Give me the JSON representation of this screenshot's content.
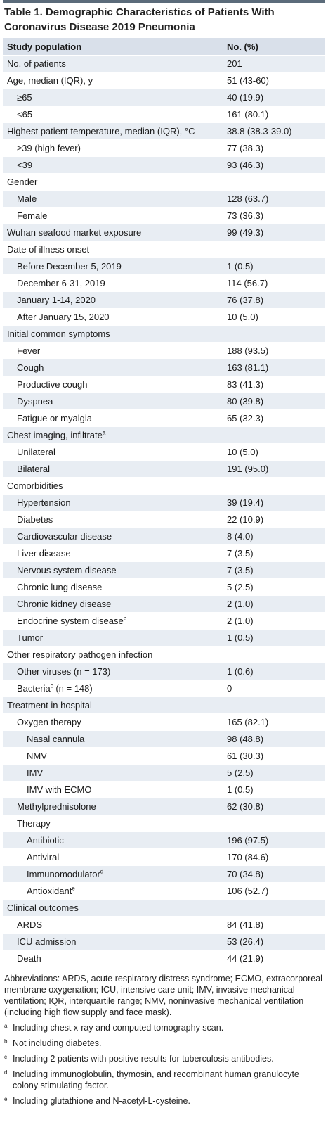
{
  "title": "Table 1. Demographic Characteristics of Patients With Coronavirus Disease 2019 Pneumonia",
  "header": {
    "col1": "Study population",
    "col2": "No. (%)"
  },
  "rows": [
    {
      "label": "No. of patients",
      "value": "201",
      "indent": 0,
      "shade": true
    },
    {
      "label": "Age, median (IQR), y",
      "value": "51 (43-60)",
      "indent": 0,
      "shade": false
    },
    {
      "label": "≥65",
      "value": "40 (19.9)",
      "indent": 1,
      "shade": true
    },
    {
      "label": "<65",
      "value": "161 (80.1)",
      "indent": 1,
      "shade": false
    },
    {
      "label": "Highest patient temperature, median (IQR), °C",
      "value": "38.8 (38.3-39.0)",
      "indent": 0,
      "shade": true
    },
    {
      "label": "≥39 (high fever)",
      "value": "77 (38.3)",
      "indent": 1,
      "shade": false
    },
    {
      "label": "<39",
      "value": "93 (46.3)",
      "indent": 1,
      "shade": true
    },
    {
      "label": "Gender",
      "value": "",
      "indent": 0,
      "shade": false
    },
    {
      "label": "Male",
      "value": "128 (63.7)",
      "indent": 1,
      "shade": true
    },
    {
      "label": "Female",
      "value": "73 (36.3)",
      "indent": 1,
      "shade": false
    },
    {
      "label": "Wuhan seafood market exposure",
      "value": "99 (49.3)",
      "indent": 0,
      "shade": true
    },
    {
      "label": "Date of illness onset",
      "value": "",
      "indent": 0,
      "shade": false
    },
    {
      "label": "Before December 5, 2019",
      "value": "1 (0.5)",
      "indent": 1,
      "shade": true
    },
    {
      "label": "December 6-31, 2019",
      "value": "114 (56.7)",
      "indent": 1,
      "shade": false
    },
    {
      "label": "January 1-14, 2020",
      "value": "76 (37.8)",
      "indent": 1,
      "shade": true
    },
    {
      "label": "After January 15, 2020",
      "value": "10 (5.0)",
      "indent": 1,
      "shade": false
    },
    {
      "label": "Initial common symptoms",
      "value": "",
      "indent": 0,
      "shade": true
    },
    {
      "label": "Fever",
      "value": "188 (93.5)",
      "indent": 1,
      "shade": false
    },
    {
      "label": "Cough",
      "value": "163 (81.1)",
      "indent": 1,
      "shade": true
    },
    {
      "label": "Productive cough",
      "value": "83 (41.3)",
      "indent": 1,
      "shade": false
    },
    {
      "label": "Dyspnea",
      "value": "80 (39.8)",
      "indent": 1,
      "shade": true
    },
    {
      "label": "Fatigue or myalgia",
      "value": "65 (32.3)",
      "indent": 1,
      "shade": false
    },
    {
      "label": "Chest imaging, infiltrate",
      "sup": "a",
      "value": "",
      "indent": 0,
      "shade": true
    },
    {
      "label": "Unilateral",
      "value": "10 (5.0)",
      "indent": 1,
      "shade": false
    },
    {
      "label": "Bilateral",
      "value": "191 (95.0)",
      "indent": 1,
      "shade": true
    },
    {
      "label": "Comorbidities",
      "value": "",
      "indent": 0,
      "shade": false
    },
    {
      "label": "Hypertension",
      "value": "39 (19.4)",
      "indent": 1,
      "shade": true
    },
    {
      "label": "Diabetes",
      "value": "22 (10.9)",
      "indent": 1,
      "shade": false
    },
    {
      "label": "Cardiovascular disease",
      "value": "8 (4.0)",
      "indent": 1,
      "shade": true
    },
    {
      "label": "Liver disease",
      "value": "7 (3.5)",
      "indent": 1,
      "shade": false
    },
    {
      "label": "Nervous system disease",
      "value": "7 (3.5)",
      "indent": 1,
      "shade": true
    },
    {
      "label": "Chronic lung disease",
      "value": "5 (2.5)",
      "indent": 1,
      "shade": false
    },
    {
      "label": "Chronic kidney disease",
      "value": "2 (1.0)",
      "indent": 1,
      "shade": true
    },
    {
      "label": "Endocrine system disease",
      "sup": "b",
      "value": "2 (1.0)",
      "indent": 1,
      "shade": false
    },
    {
      "label": "Tumor",
      "value": "1 (0.5)",
      "indent": 1,
      "shade": true
    },
    {
      "label": "Other respiratory pathogen infection",
      "value": "",
      "indent": 0,
      "shade": false
    },
    {
      "label": "Other viruses (n = 173)",
      "value": "1 (0.6)",
      "indent": 1,
      "shade": true
    },
    {
      "label": "Bacteria",
      "sup": "c",
      "suffix": " (n = 148)",
      "value": "0",
      "indent": 1,
      "shade": false
    },
    {
      "label": "Treatment in hospital",
      "value": "",
      "indent": 0,
      "shade": true
    },
    {
      "label": "Oxygen therapy",
      "value": "165 (82.1)",
      "indent": 1,
      "shade": false
    },
    {
      "label": "Nasal cannula",
      "value": "98 (48.8)",
      "indent": 2,
      "shade": true
    },
    {
      "label": "NMV",
      "value": "61 (30.3)",
      "indent": 2,
      "shade": false
    },
    {
      "label": "IMV",
      "value": "5 (2.5)",
      "indent": 2,
      "shade": true
    },
    {
      "label": "IMV with ECMO",
      "value": "1 (0.5)",
      "indent": 2,
      "shade": false
    },
    {
      "label": "Methylprednisolone",
      "value": "62 (30.8)",
      "indent": 1,
      "shade": true
    },
    {
      "label": "Therapy",
      "value": "",
      "indent": 1,
      "shade": false
    },
    {
      "label": "Antibiotic",
      "value": "196 (97.5)",
      "indent": 2,
      "shade": true
    },
    {
      "label": "Antiviral",
      "value": "170 (84.6)",
      "indent": 2,
      "shade": false
    },
    {
      "label": "Immunomodulator",
      "sup": "d",
      "value": "70 (34.8)",
      "indent": 2,
      "shade": true
    },
    {
      "label": "Antioxidant",
      "sup": "e",
      "value": "106 (52.7)",
      "indent": 2,
      "shade": false
    },
    {
      "label": "Clinical outcomes",
      "value": "",
      "indent": 0,
      "shade": true
    },
    {
      "label": "ARDS",
      "value": "84 (41.8)",
      "indent": 1,
      "shade": false
    },
    {
      "label": "ICU admission",
      "value": "53 (26.4)",
      "indent": 1,
      "shade": true
    },
    {
      "label": "Death",
      "value": "44 (21.9)",
      "indent": 1,
      "shade": false
    }
  ],
  "abbreviations": "Abbreviations: ARDS, acute respiratory distress syndrome; ECMO, extracorporeal membrane oxygenation; ICU, intensive care unit; IMV, invasive mechanical ventilation; IQR, interquartile range; NMV, noninvasive mechanical ventilation (including high flow supply and face mask).",
  "footnotes": [
    {
      "mark": "a",
      "text": "Including chest x-ray and computed tomography scan."
    },
    {
      "mark": "b",
      "text": "Not including diabetes."
    },
    {
      "mark": "c",
      "text": "Including 2 patients with positive results for tuberculosis antibodies."
    },
    {
      "mark": "d",
      "text": "Including immunoglobulin, thymosin, and recombinant human granulocyte colony stimulating factor."
    },
    {
      "mark": "e",
      "text": "Including glutathione and N-acetyl-L-cysteine."
    }
  ]
}
